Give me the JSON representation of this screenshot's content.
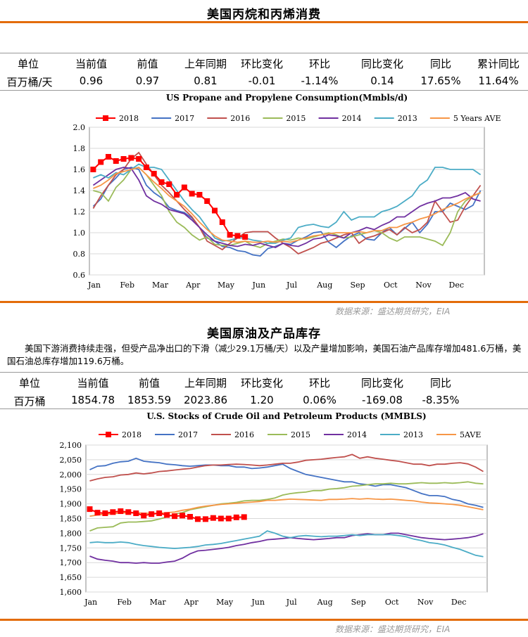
{
  "section1": {
    "title": "美国丙烷和丙烯消费",
    "table": {
      "headers": [
        "单位",
        "当前值",
        "前值",
        "上年同期",
        "环比变化",
        "环比",
        "同比变化",
        "同比",
        "累计同比"
      ],
      "row": [
        "百万桶/天",
        "0.96",
        "0.97",
        "0.81",
        "-0.01",
        "-1.14%",
        "0.14",
        "17.65%",
        "11.64%"
      ]
    },
    "source": "数据来源：盛达期货研究，EIA"
  },
  "section2": {
    "title": "美国原油及产品库存",
    "note": "美国下游消费持续走强，但受产品净出口的下滑（减少29.1万桶/天）以及产量增加影响，美国石油产品库存增加481.6万桶，美国石油总库存增加119.6万桶。",
    "table": {
      "headers": [
        "单位",
        "当前值",
        "前值",
        "上年同期",
        "环比变化",
        "环比",
        "同比变化",
        "同比"
      ],
      "row": [
        "百万桶",
        "1854.78",
        "1853.59",
        "2023.86",
        "1.20",
        "0.06%",
        "-169.08",
        "-8.35%"
      ]
    },
    "source": "数据来源：盛达期货研究，EIA"
  },
  "chart_data": [
    {
      "type": "line",
      "title": "US Propane and Propylene Consumption(Mmbls/d)",
      "ylim": [
        0.6,
        2.0
      ],
      "yticks": [
        "0.6",
        "0.8",
        "1.0",
        "1.2",
        "1.4",
        "1.6",
        "1.8",
        "2.0"
      ],
      "xticks": [
        "Jan",
        "Feb",
        "Mar",
        "Apr",
        "May",
        "Jun",
        "Jul",
        "Aug",
        "Sep",
        "Oct",
        "Nov",
        "Dec"
      ],
      "x_weeks": 52,
      "legend_position": "top",
      "series": [
        {
          "name": "2018",
          "color": "#ff0000",
          "marker": "square",
          "values": [
            1.6,
            1.67,
            1.72,
            1.68,
            1.7,
            1.71,
            1.7,
            1.62,
            1.56,
            1.48,
            1.46,
            1.36,
            1.43,
            1.37,
            1.36,
            1.3,
            1.21,
            1.1,
            0.98,
            0.97,
            0.96
          ]
        },
        {
          "name": "2017",
          "color": "#4472c4",
          "values": [
            1.25,
            1.32,
            1.45,
            1.52,
            1.6,
            1.62,
            1.6,
            1.45,
            1.38,
            1.33,
            1.24,
            1.21,
            1.19,
            1.14,
            1.05,
            0.95,
            0.92,
            0.87,
            0.86,
            0.83,
            0.82,
            0.79,
            0.78,
            0.85,
            0.87,
            0.9,
            0.89,
            0.93,
            0.96,
            1.0,
            1.01,
            0.91,
            0.86,
            0.92,
            0.97,
            1.0,
            0.94,
            0.93,
            1.0,
            1.05,
            0.98,
            1.04,
            1.1,
            1.0,
            1.08,
            1.2,
            1.2,
            1.28,
            1.25,
            1.22,
            1.26,
            1.4
          ]
        },
        {
          "name": "2016",
          "color": "#c0504d",
          "values": [
            1.23,
            1.35,
            1.45,
            1.55,
            1.6,
            1.7,
            1.76,
            1.65,
            1.55,
            1.45,
            1.38,
            1.3,
            1.22,
            1.15,
            1.05,
            0.92,
            0.88,
            0.84,
            0.9,
            0.95,
            1.0,
            1.01,
            1.01,
            1.01,
            0.95,
            0.9,
            0.86,
            0.8,
            0.83,
            0.86,
            0.9,
            0.92,
            0.95,
            0.98,
            1.0,
            0.9,
            0.95,
            0.97,
            1.0,
            1.03,
            0.98,
            1.05,
            1.0,
            1.03,
            1.1,
            1.3,
            1.2,
            1.1,
            1.12,
            1.25,
            1.35,
            1.45
          ]
        },
        {
          "name": "2015",
          "color": "#9bbb59",
          "values": [
            1.4,
            1.38,
            1.3,
            1.43,
            1.5,
            1.6,
            1.62,
            1.55,
            1.45,
            1.35,
            1.2,
            1.1,
            1.05,
            0.98,
            0.93,
            0.96,
            0.89,
            0.88,
            0.88,
            0.9,
            0.92,
            0.88,
            0.86,
            0.9,
            0.92,
            0.94,
            0.93,
            0.95,
            0.94,
            0.96,
            0.98,
            1.0,
            0.98,
            0.95,
            0.96,
            0.98,
            1.0,
            1.02,
            1.0,
            0.95,
            0.92,
            0.96,
            0.96,
            0.96,
            0.94,
            0.92,
            0.88,
            1.0,
            1.2,
            1.3,
            1.35,
            1.38
          ]
        },
        {
          "name": "2014",
          "color": "#7030a0",
          "values": [
            1.45,
            1.5,
            1.55,
            1.6,
            1.62,
            1.61,
            1.5,
            1.35,
            1.3,
            1.27,
            1.22,
            1.2,
            1.18,
            1.12,
            1.05,
            0.98,
            0.92,
            0.9,
            0.88,
            0.87,
            0.89,
            0.88,
            0.9,
            0.88,
            0.86,
            0.9,
            0.88,
            0.87,
            0.9,
            0.94,
            0.95,
            0.98,
            0.97,
            0.95,
            1.0,
            1.02,
            1.05,
            1.03,
            1.07,
            1.1,
            1.15,
            1.15,
            1.2,
            1.25,
            1.28,
            1.3,
            1.33,
            1.33,
            1.35,
            1.38,
            1.32,
            1.3
          ]
        },
        {
          "name": "2013",
          "color": "#4bacc6",
          "values": [
            1.52,
            1.55,
            1.52,
            1.57,
            1.55,
            1.6,
            1.65,
            1.62,
            1.62,
            1.6,
            1.5,
            1.4,
            1.3,
            1.22,
            1.15,
            1.05,
            0.95,
            0.92,
            0.93,
            0.95,
            0.95,
            0.93,
            0.92,
            0.9,
            0.9,
            0.93,
            0.95,
            1.05,
            1.07,
            1.08,
            1.06,
            1.05,
            1.1,
            1.2,
            1.12,
            1.15,
            1.15,
            1.15,
            1.2,
            1.22,
            1.25,
            1.3,
            1.35,
            1.45,
            1.5,
            1.62,
            1.62,
            1.6,
            1.6,
            1.6,
            1.6,
            1.55
          ]
        },
        {
          "name": "5 Years AVE",
          "color": "#f79646",
          "values": [
            1.42,
            1.45,
            1.5,
            1.56,
            1.58,
            1.6,
            1.62,
            1.55,
            1.48,
            1.42,
            1.35,
            1.3,
            1.25,
            1.18,
            1.1,
            1.03,
            0.97,
            0.93,
            0.92,
            0.91,
            0.92,
            0.91,
            0.91,
            0.92,
            0.91,
            0.92,
            0.91,
            0.93,
            0.95,
            0.97,
            0.98,
            0.99,
            1.0,
            1.0,
            1.0,
            1.01,
            1.0,
            1.02,
            1.02,
            1.05,
            1.05,
            1.08,
            1.1,
            1.13,
            1.15,
            1.18,
            1.22,
            1.25,
            1.28,
            1.32,
            1.35,
            1.38
          ]
        }
      ]
    },
    {
      "type": "line",
      "title": "U.S. Stocks of Crude Oil and Petroleum Products  (MMBLS)",
      "ylim": [
        1600,
        2100
      ],
      "yticks": [
        "1,600",
        "1,650",
        "1,700",
        "1,750",
        "1,800",
        "1,850",
        "1,900",
        "1,950",
        "2,000",
        "2,050",
        "2,100"
      ],
      "xticks": [
        "Jan",
        "Feb",
        "Mar",
        "Apr",
        "May",
        "Jun",
        "Jul",
        "Aug",
        "Sep",
        "Oct",
        "Nov",
        "Dec"
      ],
      "x_weeks": 52,
      "legend_position": "top",
      "series": [
        {
          "name": "2018",
          "color": "#ff0000",
          "marker": "square",
          "values": [
            1882,
            1870,
            1868,
            1872,
            1875,
            1872,
            1868,
            1860,
            1865,
            1868,
            1862,
            1858,
            1860,
            1856,
            1848,
            1848,
            1852,
            1850,
            1850,
            1854,
            1855
          ]
        },
        {
          "name": "2017",
          "color": "#4472c4",
          "values": [
            2016,
            2028,
            2030,
            2038,
            2043,
            2045,
            2055,
            2045,
            2042,
            2040,
            2035,
            2033,
            2030,
            2028,
            2030,
            2032,
            2032,
            2030,
            2030,
            2025,
            2025,
            2020,
            2022,
            2025,
            2030,
            2035,
            2020,
            2010,
            2000,
            1995,
            1990,
            1985,
            1980,
            1975,
            1975,
            1968,
            1965,
            1960,
            1965,
            1965,
            1960,
            1955,
            1945,
            1935,
            1928,
            1928,
            1925,
            1915,
            1910,
            1900,
            1895,
            1888
          ]
        },
        {
          "name": "2016",
          "color": "#c0504d",
          "values": [
            1978,
            1985,
            1990,
            1992,
            1998,
            2000,
            2005,
            2002,
            2005,
            2010,
            2012,
            2015,
            2018,
            2020,
            2025,
            2030,
            2032,
            2032,
            2034,
            2035,
            2034,
            2032,
            2030,
            2032,
            2035,
            2038,
            2038,
            2042,
            2048,
            2050,
            2052,
            2055,
            2058,
            2060,
            2068,
            2055,
            2060,
            2055,
            2052,
            2048,
            2045,
            2040,
            2035,
            2035,
            2030,
            2035,
            2035,
            2038,
            2040,
            2036,
            2025,
            2010
          ]
        },
        {
          "name": "2015",
          "color": "#9bbb59",
          "values": [
            1808,
            1818,
            1820,
            1822,
            1835,
            1838,
            1838,
            1840,
            1842,
            1848,
            1855,
            1865,
            1870,
            1880,
            1885,
            1890,
            1895,
            1900,
            1902,
            1905,
            1910,
            1912,
            1912,
            1915,
            1920,
            1930,
            1935,
            1938,
            1940,
            1945,
            1945,
            1950,
            1952,
            1955,
            1960,
            1962,
            1965,
            1968,
            1968,
            1970,
            1968,
            1968,
            1970,
            1972,
            1970,
            1970,
            1972,
            1970,
            1972,
            1975,
            1970,
            1968
          ]
        },
        {
          "name": "2014",
          "color": "#7030a0",
          "values": [
            1722,
            1712,
            1708,
            1705,
            1700,
            1700,
            1698,
            1700,
            1698,
            1698,
            1702,
            1705,
            1715,
            1730,
            1740,
            1742,
            1745,
            1748,
            1752,
            1758,
            1762,
            1768,
            1772,
            1778,
            1780,
            1782,
            1785,
            1782,
            1780,
            1778,
            1780,
            1782,
            1785,
            1785,
            1792,
            1795,
            1798,
            1795,
            1795,
            1800,
            1800,
            1795,
            1790,
            1785,
            1782,
            1780,
            1778,
            1780,
            1782,
            1785,
            1790,
            1798
          ]
        },
        {
          "name": "2013",
          "color": "#4bacc6",
          "values": [
            1768,
            1770,
            1768,
            1768,
            1770,
            1768,
            1762,
            1758,
            1755,
            1752,
            1750,
            1748,
            1750,
            1752,
            1755,
            1760,
            1762,
            1765,
            1770,
            1775,
            1780,
            1785,
            1790,
            1808,
            1800,
            1790,
            1785,
            1790,
            1792,
            1790,
            1788,
            1790,
            1790,
            1792,
            1795,
            1792,
            1795,
            1795,
            1795,
            1795,
            1792,
            1788,
            1780,
            1775,
            1768,
            1765,
            1760,
            1752,
            1745,
            1735,
            1725,
            1720
          ]
        },
        {
          "name": "5AVE",
          "color": "#f79646",
          "values": [
            1858,
            1862,
            1865,
            1866,
            1870,
            1868,
            1870,
            1868,
            1868,
            1868,
            1870,
            1872,
            1878,
            1882,
            1888,
            1892,
            1895,
            1898,
            1900,
            1902,
            1904,
            1906,
            1908,
            1912,
            1912,
            1914,
            1916,
            1915,
            1914,
            1913,
            1912,
            1915,
            1915,
            1916,
            1918,
            1916,
            1918,
            1916,
            1915,
            1916,
            1914,
            1912,
            1910,
            1906,
            1903,
            1902,
            1900,
            1898,
            1895,
            1890,
            1885,
            1880
          ]
        }
      ]
    }
  ]
}
